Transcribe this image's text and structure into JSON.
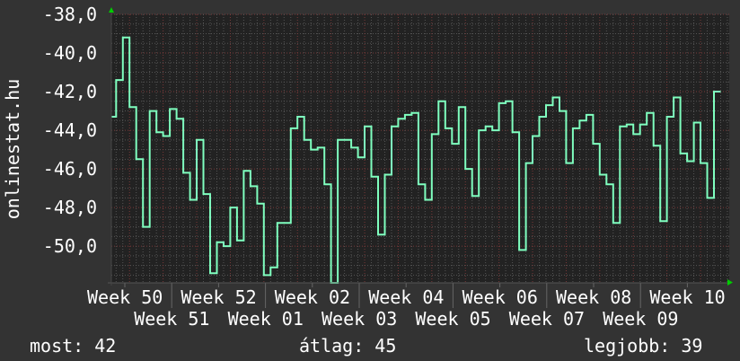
{
  "chart_data": {
    "type": "line",
    "style": "step",
    "ylabel": "onlinestat.hu",
    "xlabel": "",
    "ylim": [
      -51.9,
      -38.0
    ],
    "y_ticks": [
      "-38,0",
      "-40,0",
      "-42,0",
      "-44,0",
      "-46,0",
      "-48,0",
      "-50,0"
    ],
    "y_tick_values": [
      -38,
      -40,
      -42,
      -44,
      -46,
      -48,
      -50
    ],
    "x_ticks": [
      "Week 50",
      "Week 51",
      "Week 52",
      "Week 01",
      "Week 02",
      "Week 03",
      "Week 04",
      "Week 05",
      "Week 06",
      "Week 07",
      "Week 08",
      "Week 09",
      "Week 10"
    ],
    "x_unit": "day",
    "grid": true,
    "colors": {
      "line": "#7fffbf",
      "background": "#333333",
      "plot": "#222222",
      "grid_minor": "#555555",
      "grid_major": "#7a3a3a",
      "arrow": "#00cc00"
    },
    "values": [
      -43.3,
      -41.4,
      -39.2,
      -42.8,
      -45.5,
      -49.0,
      -43.0,
      -44.1,
      -44.3,
      -42.9,
      -43.4,
      -46.2,
      -47.6,
      -44.5,
      -47.3,
      -51.4,
      -49.8,
      -50.0,
      -48.0,
      -49.7,
      -46.1,
      -46.9,
      -47.8,
      -51.5,
      -51.1,
      -48.8,
      -48.8,
      -43.9,
      -43.3,
      -44.5,
      -45.0,
      -44.9,
      -46.8,
      -51.9,
      -44.5,
      -44.5,
      -44.9,
      -45.4,
      -43.8,
      -46.4,
      -49.4,
      -46.3,
      -43.8,
      -43.4,
      -43.2,
      -43.1,
      -46.8,
      -47.6,
      -44.2,
      -42.5,
      -43.9,
      -44.7,
      -42.8,
      -46.0,
      -47.4,
      -44.0,
      -43.8,
      -44.0,
      -42.6,
      -42.5,
      -44.1,
      -50.2,
      -45.7,
      -44.3,
      -43.3,
      -42.7,
      -42.3,
      -43.0,
      -45.7,
      -43.9,
      -43.5,
      -43.2,
      -44.7,
      -46.3,
      -46.8,
      -48.8,
      -43.8,
      -43.7,
      -44.2,
      -43.7,
      -43.1,
      -44.8,
      -48.7,
      -43.3,
      -42.3,
      -45.2,
      -45.6,
      -43.6,
      -45.7,
      -47.5,
      -42.0
    ]
  },
  "footer": {
    "current_label": "most: 42",
    "average_label": "átlag: 45",
    "best_label": "legjobb: 39"
  }
}
